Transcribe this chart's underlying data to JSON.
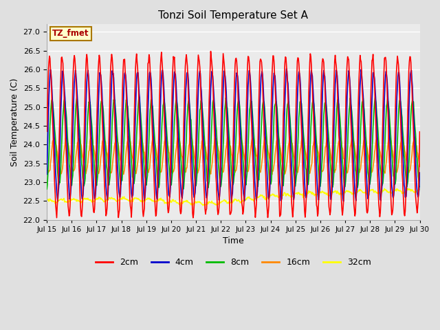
{
  "title": "Tonzi Soil Temperature Set A",
  "xlabel": "Time",
  "ylabel": "Soil Temperature (C)",
  "ylim": [
    22.0,
    27.2
  ],
  "yticks": [
    22.0,
    22.5,
    23.0,
    23.5,
    24.0,
    24.5,
    25.0,
    25.5,
    26.0,
    26.5,
    27.0
  ],
  "xtick_labels": [
    "Jul 15",
    "Jul 16",
    "Jul 17",
    "Jul 18",
    "Jul 19",
    "Jul 20",
    "Jul 21",
    "Jul 22",
    "Jul 23",
    "Jul 24",
    "Jul 25",
    "Jul 26",
    "Jul 27",
    "Jul 28",
    "Jul 29",
    "Jul 30"
  ],
  "colors": {
    "2cm": "#ff0000",
    "4cm": "#0000cc",
    "8cm": "#00bb00",
    "16cm": "#ff8800",
    "32cm": "#ffff00"
  },
  "legend_label": "TZ_fmet",
  "background_color": "#e0e0e0",
  "plot_background": "#ebebeb",
  "grid_color": "#ffffff",
  "n_points": 720
}
